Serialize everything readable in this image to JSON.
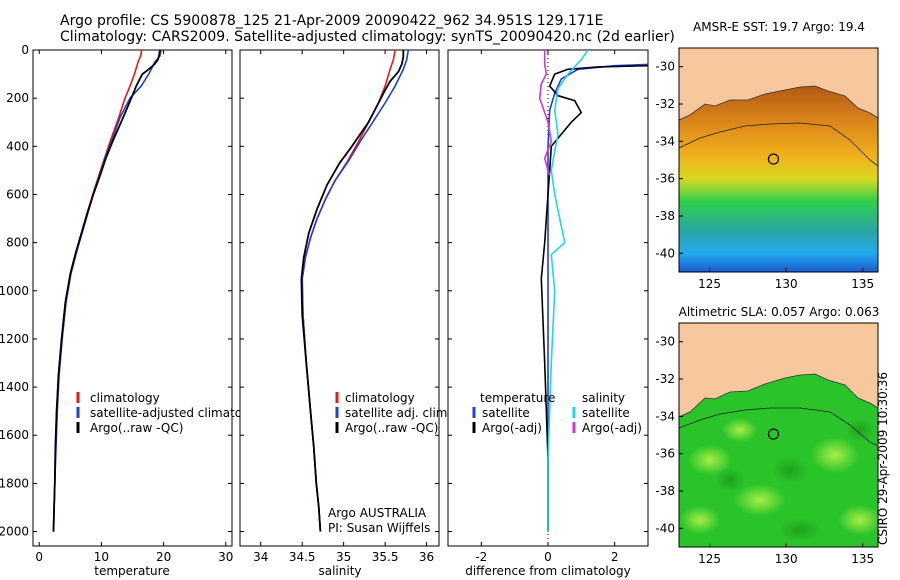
{
  "figure": {
    "title_line1": "Argo profile: CS 5900878_125 21-Apr-2009 20090422_962 34.951S 129.171E",
    "title_line2": "Climatology: CARS2009. Satellite-adjusted climatology: synTS_20090420.nc (2d earlier)",
    "footer_stamp": "CSIRO 29-Apr-2009 10:30:36",
    "argo_note_1": "Argo AUSTRALIA",
    "argo_note_2": "PI: Susan Wijffels"
  },
  "chart_data": [
    {
      "type": "line",
      "xlabel": "temperature",
      "ylabel": "",
      "xlim": [
        -1,
        31
      ],
      "ylim": [
        2060,
        0
      ],
      "xticks": [
        0,
        10,
        20,
        30
      ],
      "yticks": [
        0,
        200,
        400,
        600,
        800,
        1000,
        1200,
        1400,
        1600,
        1800,
        2000
      ],
      "legend": [
        "climatology",
        "satellite-adjusted climatology",
        "Argo(..raw -QC)"
      ],
      "series": [
        {
          "name": "climatology",
          "color": "#e31a1c",
          "x": [
            16.5,
            16.3,
            15.9,
            15.3,
            14.6,
            13.8,
            12.8,
            11.4,
            10.5,
            9.6,
            8.6,
            7.7,
            6.8,
            5.9,
            5.0,
            4.2,
            3.6,
            3.1,
            2.8,
            2.6,
            2.5,
            2.4,
            2.3
          ],
          "y": [
            0,
            25,
            50,
            100,
            150,
            200,
            280,
            380,
            450,
            520,
            600,
            680,
            760,
            840,
            930,
            1050,
            1200,
            1350,
            1500,
            1650,
            1800,
            1900,
            2000
          ]
        },
        {
          "name": "satellite-adjusted climatology",
          "color": "#1f3fd6",
          "x": [
            19.6,
            19.4,
            18.6,
            17.6,
            16.4,
            14.6,
            13.0,
            11.6,
            10.6,
            9.7,
            8.7,
            7.8,
            6.9,
            6.0,
            5.1,
            4.3,
            3.7,
            3.2,
            2.9,
            2.7,
            2.5,
            2.4,
            2.3
          ],
          "y": [
            0,
            25,
            50,
            100,
            150,
            200,
            280,
            380,
            450,
            520,
            600,
            680,
            760,
            840,
            930,
            1050,
            1200,
            1350,
            1500,
            1650,
            1800,
            1900,
            2000
          ]
        },
        {
          "name": "Argo(..raw -QC)",
          "color": "#000000",
          "x": [
            19.4,
            19.3,
            19.1,
            18.5,
            17.6,
            16.6,
            15.6,
            14.8,
            13.5,
            11.8,
            10.7,
            9.8,
            8.7,
            7.7,
            6.8,
            5.9,
            5.0,
            4.2,
            3.6,
            3.1,
            2.8,
            2.6,
            2.5,
            2.4,
            2.3
          ],
          "y": [
            0,
            20,
            40,
            60,
            80,
            100,
            150,
            200,
            280,
            380,
            450,
            520,
            600,
            680,
            760,
            840,
            930,
            1050,
            1200,
            1350,
            1500,
            1650,
            1800,
            1900,
            2000
          ]
        }
      ]
    },
    {
      "type": "line",
      "xlabel": "salinity",
      "ylabel": "",
      "xlim": [
        33.75,
        36.15
      ],
      "ylim": [
        2060,
        0
      ],
      "xticks": [
        34,
        34.5,
        35,
        35.5,
        36
      ],
      "yticks": [
        0,
        200,
        400,
        600,
        800,
        1000,
        1200,
        1400,
        1600,
        1800,
        2000
      ],
      "legend": [
        "climatology",
        "satellite adj. clim.",
        "Argo(..raw -QC)"
      ],
      "series": [
        {
          "name": "climatology",
          "color": "#e31a1c",
          "x": [
            35.62,
            35.6,
            35.56,
            35.5,
            35.42,
            35.3,
            35.18,
            35.05,
            34.9,
            34.78,
            34.68,
            34.6,
            34.54,
            34.5,
            34.51,
            34.55,
            34.6,
            34.64,
            34.67,
            34.7,
            34.72
          ],
          "y": [
            0,
            40,
            80,
            150,
            220,
            300,
            380,
            460,
            540,
            620,
            700,
            780,
            860,
            950,
            1100,
            1300,
            1500,
            1650,
            1800,
            1900,
            2000
          ]
        },
        {
          "name": "satellite adj. clim.",
          "color": "#1f3fd6",
          "x": [
            35.78,
            35.76,
            35.72,
            35.62,
            35.5,
            35.35,
            35.2,
            35.06,
            34.9,
            34.78,
            34.68,
            34.6,
            34.54,
            34.5,
            34.51,
            34.55,
            34.6,
            34.64,
            34.67,
            34.7,
            34.72
          ],
          "y": [
            0,
            40,
            80,
            150,
            220,
            300,
            380,
            460,
            540,
            620,
            700,
            780,
            860,
            950,
            1100,
            1300,
            1500,
            1650,
            1800,
            1900,
            2000
          ]
        },
        {
          "name": "Argo(..raw -QC)",
          "color": "#000000",
          "x": [
            35.72,
            35.72,
            35.7,
            35.66,
            35.56,
            35.48,
            35.42,
            35.3,
            35.1,
            34.95,
            34.8,
            34.68,
            34.58,
            34.52,
            34.49,
            34.5,
            34.55,
            34.6,
            34.64,
            34.67,
            34.7,
            34.72
          ],
          "y": [
            0,
            30,
            60,
            90,
            130,
            180,
            220,
            300,
            400,
            470,
            560,
            660,
            760,
            860,
            950,
            1100,
            1300,
            1500,
            1650,
            1800,
            1900,
            2000
          ]
        }
      ]
    },
    {
      "type": "line",
      "xlabel": "difference from climatology",
      "ylabel": "",
      "xlim": [
        -3,
        3
      ],
      "ylim": [
        2060,
        0
      ],
      "xticks": [
        -2,
        0,
        2
      ],
      "yticks": [
        0,
        200,
        400,
        600,
        800,
        1000,
        1200,
        1400,
        1600,
        1800,
        2000
      ],
      "legend_headers": [
        "temperature",
        "salinity"
      ],
      "legend": [
        "satellite",
        "Argo(-adj)",
        "satellite",
        "Argo(-adj)"
      ],
      "series": [
        {
          "name": "satellite",
          "group": "temperature",
          "color": "#1f3fd6",
          "x": [
            3.0,
            2.0,
            0.9,
            0.4,
            0.2,
            0.05,
            0.0,
            0.0,
            0.0,
            0.0
          ],
          "y": [
            60,
            65,
            80,
            120,
            180,
            250,
            400,
            800,
            1400,
            2000
          ]
        },
        {
          "name": "Argo(-adj)",
          "group": "temperature",
          "color": "#000000",
          "x": [
            3.0,
            1.5,
            0.6,
            0.2,
            0.05,
            0.3,
            0.8,
            1.0,
            0.7,
            0.1,
            -0.1,
            -0.2,
            -0.1,
            0.0,
            0.0
          ],
          "y": [
            65,
            70,
            80,
            100,
            150,
            190,
            210,
            260,
            300,
            400,
            800,
            950,
            1300,
            1700,
            2000
          ]
        },
        {
          "name": "satellite",
          "group": "salinity",
          "color": "#22d6e6",
          "x": [
            1.2,
            1.0,
            0.6,
            0.3,
            0.2,
            0.3,
            0.2,
            0.1,
            0.2,
            0.5,
            0.1,
            0.2,
            0.1,
            0.0,
            0.0
          ],
          "y": [
            0,
            40,
            100,
            160,
            250,
            350,
            420,
            500,
            600,
            800,
            850,
            1000,
            1300,
            1700,
            2000
          ]
        },
        {
          "name": "Argo(-adj)",
          "group": "salinity",
          "color": "#d633d6",
          "x": [
            -0.1,
            -0.1,
            -0.05,
            -0.2,
            -0.25,
            0.0,
            0.1,
            -0.1,
            0.0,
            0.05
          ],
          "y": [
            0,
            60,
            100,
            140,
            200,
            300,
            380,
            450,
            500,
            520
          ]
        }
      ]
    }
  ],
  "maps": [
    {
      "title": "AMSR-E SST: 19.7 Argo: 19.4",
      "xlim": [
        123,
        136
      ],
      "ylim": [
        -41,
        -29
      ],
      "xticks": [
        125,
        130,
        135
      ],
      "yticks": [
        -30,
        -32,
        -34,
        -36,
        -38,
        -40
      ],
      "land_color": "#f7c79e",
      "marker": {
        "lon": 129.171,
        "lat": -34.951
      }
    },
    {
      "title": "Altimetric SLA: 0.057 Argo: 0.063",
      "xlim": [
        123,
        136
      ],
      "ylim": [
        -41,
        -29
      ],
      "xticks": [
        125,
        130,
        135
      ],
      "yticks": [
        -30,
        -32,
        -34,
        -36,
        -38,
        -40
      ],
      "land_color": "#f7c79e",
      "marker": {
        "lon": 129.171,
        "lat": -34.951
      }
    }
  ]
}
